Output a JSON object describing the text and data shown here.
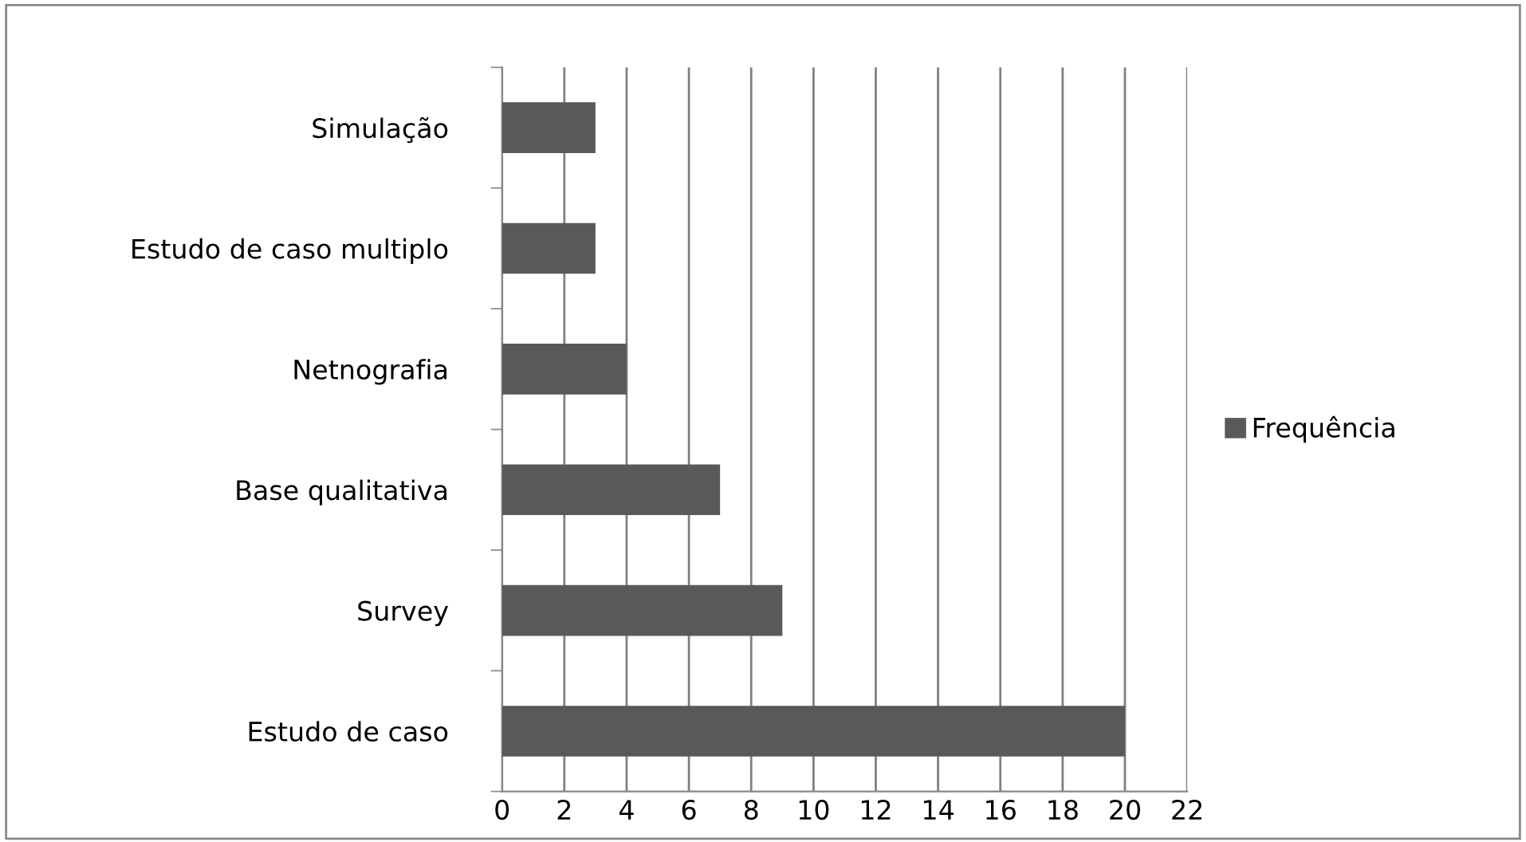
{
  "chart_data": {
    "type": "bar",
    "orientation": "horizontal",
    "categories": [
      "Simulação",
      "Estudo de caso multiplo",
      "Netnografia",
      "Base qualitativa",
      "Survey",
      "Estudo de caso"
    ],
    "series": [
      {
        "name": "Frequência",
        "color": "#595959",
        "values": [
          3,
          3,
          4,
          7,
          9,
          20
        ]
      }
    ],
    "xlim": [
      0,
      22
    ],
    "xticks": [
      0,
      2,
      4,
      6,
      8,
      10,
      12,
      14,
      16,
      18,
      20,
      22
    ],
    "grid": "x",
    "legend": "right"
  }
}
